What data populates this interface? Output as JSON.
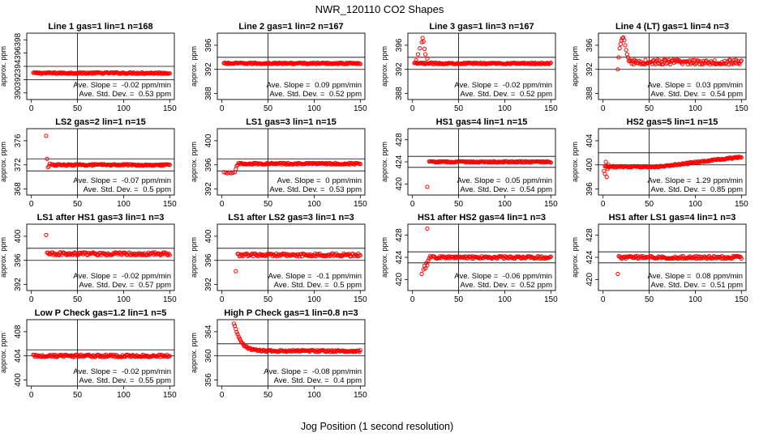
{
  "figure": {
    "title": "NWR_120110  CO2 Shapes",
    "xlabel": "Jog Position (1 second resolution)"
  },
  "chart_data": [
    {
      "type": "scatter",
      "title": "Line 1 gas=1 lin=1 n=168",
      "ylabel": "approx. ppm",
      "xlim": [
        -5,
        155
      ],
      "ylim": [
        389,
        399
      ],
      "yticks": [
        390,
        392,
        394,
        396,
        398
      ],
      "xticks": [
        0,
        50,
        100,
        150
      ],
      "vline": 50,
      "hlines": [
        392,
        394
      ],
      "base": 393,
      "noise": 0.12,
      "trend": 0,
      "x_start": 2,
      "x_end": 150,
      "spikes": [],
      "slope_label": "Ave. Slope = ",
      "slope_value": "-0.02",
      "slope_unit": "ppm/min",
      "std_label": "Ave. Std. Dev. = ",
      "std_value": "0.53",
      "std_unit": "ppm"
    },
    {
      "type": "scatter",
      "title": "Line 2 gas=1 lin=2 n=167",
      "ylabel": "approx. ppm",
      "xlim": [
        -5,
        155
      ],
      "ylim": [
        387,
        398
      ],
      "yticks": [
        388,
        392,
        396
      ],
      "xticks": [
        0,
        50,
        100,
        150
      ],
      "vline": 50,
      "hlines": [
        392,
        394
      ],
      "base": 393,
      "noise": 0.12,
      "trend": 0,
      "x_start": 2,
      "x_end": 150,
      "spikes": [],
      "slope_label": "Ave. Slope = ",
      "slope_value": "0.09",
      "slope_unit": "ppm/min",
      "std_label": "Ave. Std. Dev. = ",
      "std_value": "0.52",
      "std_unit": "ppm"
    },
    {
      "type": "scatter",
      "title": "Line 3 gas=1 lin=3 n=167",
      "ylabel": "approx. ppm",
      "xlim": [
        -5,
        155
      ],
      "ylim": [
        387,
        398
      ],
      "yticks": [
        388,
        392,
        396
      ],
      "xticks": [
        0,
        50,
        100,
        150
      ],
      "vline": 50,
      "hlines": [
        392,
        394
      ],
      "base": 393,
      "noise": 0.12,
      "trend": 0,
      "x_start": 2,
      "x_end": 150,
      "spikes": [
        [
          4,
          393.5
        ],
        [
          6,
          394.5
        ],
        [
          8,
          395.5
        ],
        [
          10,
          396.5
        ],
        [
          11,
          397.2
        ],
        [
          12,
          396.6
        ],
        [
          13,
          395.4
        ],
        [
          14,
          394.5
        ],
        [
          16,
          393.8
        ]
      ],
      "slope_label": "Ave. Slope = ",
      "slope_value": "-0.02",
      "slope_unit": "ppm/min",
      "std_label": "Ave. Std. Dev. = ",
      "std_value": "0.52",
      "std_unit": "ppm"
    },
    {
      "type": "scatter",
      "title": "Line 4 (LT) gas=1 lin=4 n=3",
      "ylabel": "approx. ppm",
      "xlim": [
        -5,
        155
      ],
      "ylim": [
        387,
        398
      ],
      "yticks": [
        388,
        392,
        396
      ],
      "xticks": [
        0,
        50,
        100,
        150
      ],
      "vline": 50,
      "hlines": [
        392,
        394
      ],
      "base": 393.2,
      "noise": 0.4,
      "trend": 0,
      "x_start": 28,
      "x_end": 150,
      "spikes": [
        [
          16,
          392
        ],
        [
          17,
          394
        ],
        [
          18,
          395.5
        ],
        [
          19,
          396.2
        ],
        [
          20,
          396.8
        ],
        [
          21,
          397.2
        ],
        [
          22,
          397.3
        ],
        [
          23,
          396.8
        ],
        [
          24,
          396
        ],
        [
          25,
          395.2
        ],
        [
          26,
          394.5
        ],
        [
          27,
          394
        ]
      ],
      "slope_label": "Ave. Slope = ",
      "slope_value": "0.03",
      "slope_unit": "ppm/min",
      "std_label": "Ave. Std. Dev. = ",
      "std_value": "0.54",
      "std_unit": "ppm"
    },
    {
      "type": "scatter",
      "title": "LS2 gas=2 lin=1 n=15",
      "ylabel": "approx. ppm",
      "xlim": [
        -5,
        155
      ],
      "ylim": [
        367,
        378
      ],
      "yticks": [
        368,
        372,
        376
      ],
      "xticks": [
        0,
        50,
        100,
        150
      ],
      "vline": 50,
      "hlines": [
        371,
        373
      ],
      "base": 372,
      "noise": 0.12,
      "trend": 0,
      "x_start": 22,
      "x_end": 150,
      "spikes": [
        [
          16,
          376.8
        ],
        [
          17,
          373
        ],
        [
          18,
          371.6
        ],
        [
          19,
          371.8
        ],
        [
          20,
          372.2
        ]
      ],
      "slope_label": "Ave. Slope = ",
      "slope_value": "-0.07",
      "slope_unit": "ppm/min",
      "std_label": "Ave. Std. Dev. = ",
      "std_value": "0.5",
      "std_unit": "ppm"
    },
    {
      "type": "scatter",
      "title": "LS1 gas=3 lin=1 n=15",
      "ylabel": "approx. ppm",
      "xlim": [
        -5,
        155
      ],
      "ylim": [
        391,
        402
      ],
      "yticks": [
        392,
        396,
        400
      ],
      "xticks": [
        0,
        50,
        100,
        150
      ],
      "vline": 50,
      "hlines": [
        395,
        397
      ],
      "base": 396.2,
      "noise": 0.13,
      "trend": 0,
      "x_start": 18,
      "x_end": 150,
      "spikes": [
        [
          2,
          394.8
        ],
        [
          4,
          394.7
        ],
        [
          6,
          394.6
        ],
        [
          8,
          394.7
        ],
        [
          10,
          394.6
        ],
        [
          12,
          394.7
        ],
        [
          14,
          394.8
        ],
        [
          15,
          395.3
        ],
        [
          16,
          395.8
        ],
        [
          17,
          396
        ]
      ],
      "slope_label": "Ave. Slope = ",
      "slope_value": "0",
      "slope_unit": "ppm/min",
      "std_label": "Ave. Std. Dev. = ",
      "std_value": "0.53",
      "std_unit": "ppm"
    },
    {
      "type": "scatter",
      "title": "HS1 gas=4 lin=1 n=15",
      "ylabel": "approx. ppm",
      "xlim": [
        -5,
        155
      ],
      "ylim": [
        418,
        430
      ],
      "yticks": [
        420,
        424,
        428
      ],
      "xticks": [
        0,
        50,
        100,
        150
      ],
      "vline": 50,
      "hlines": [
        423,
        425
      ],
      "base": 424,
      "noise": 0.12,
      "trend": 0,
      "x_start": 18,
      "x_end": 150,
      "spikes": [
        [
          16,
          419.5
        ]
      ],
      "slope_label": "Ave. Slope = ",
      "slope_value": "0.05",
      "slope_unit": "ppm/min",
      "std_label": "Ave. Std. Dev. = ",
      "std_value": "0.54",
      "std_unit": "ppm"
    },
    {
      "type": "scatter",
      "title": "HS2 gas=5 lin=1 n=15",
      "ylabel": "approx. ppm",
      "xlim": [
        -5,
        155
      ],
      "ylim": [
        395,
        406
      ],
      "yticks": [
        396,
        400,
        404
      ],
      "xticks": [
        0,
        50,
        100,
        150
      ],
      "vline": 50,
      "hlines": [
        400,
        402
      ],
      "base": 399.7,
      "noise": 0.12,
      "trend": 0.018,
      "trend_start": 60,
      "x_start": 2,
      "x_end": 150,
      "spikes": [
        [
          1,
          399
        ],
        [
          2,
          398.5
        ],
        [
          3,
          400.5
        ],
        [
          4,
          398
        ],
        [
          5,
          399.3
        ],
        [
          6,
          400
        ]
      ],
      "slope_label": "Ave. Slope = ",
      "slope_value": "1.29",
      "slope_unit": "ppm/min",
      "std_label": "Ave. Std. Dev. = ",
      "std_value": "0.85",
      "std_unit": "ppm"
    },
    {
      "type": "scatter",
      "title": "LS1 after HS1 gas=3 lin=1 n=3",
      "ylabel": "approx. ppm",
      "xlim": [
        -5,
        155
      ],
      "ylim": [
        391,
        402
      ],
      "yticks": [
        392,
        396,
        400
      ],
      "xticks": [
        0,
        50,
        100,
        150
      ],
      "vline": 50,
      "hlines": [
        396,
        398
      ],
      "base": 397.1,
      "noise": 0.25,
      "trend": 0,
      "x_start": 17,
      "x_end": 150,
      "spikes": [
        [
          16,
          400.2
        ]
      ],
      "slope_label": "Ave. Slope = ",
      "slope_value": "-0.02",
      "slope_unit": "ppm/min",
      "std_label": "Ave. Std. Dev. = ",
      "std_value": "0.57",
      "std_unit": "ppm"
    },
    {
      "type": "scatter",
      "title": "LS1 after LS2 gas=3 lin=1 n=3",
      "ylabel": "approx. ppm",
      "xlim": [
        -5,
        155
      ],
      "ylim": [
        391,
        402
      ],
      "yticks": [
        392,
        396,
        400
      ],
      "xticks": [
        0,
        50,
        100,
        150
      ],
      "vline": 50,
      "hlines": [
        396,
        398
      ],
      "base": 396.9,
      "noise": 0.25,
      "trend": 0,
      "x_start": 17,
      "x_end": 150,
      "spikes": [
        [
          15,
          394.2
        ]
      ],
      "slope_label": "Ave. Slope = ",
      "slope_value": "-0.1",
      "slope_unit": "ppm/min",
      "std_label": "Ave. Std. Dev. = ",
      "std_value": "0.5",
      "std_unit": "ppm"
    },
    {
      "type": "scatter",
      "title": "HS1 after HS2 gas=4 lin=1 n=3",
      "ylabel": "approx. ppm",
      "xlim": [
        -5,
        155
      ],
      "ylim": [
        418,
        430
      ],
      "yticks": [
        420,
        424,
        428
      ],
      "xticks": [
        0,
        50,
        100,
        150
      ],
      "vline": 50,
      "hlines": [
        423,
        425
      ],
      "base": 424,
      "noise": 0.22,
      "trend": 0,
      "x_start": 22,
      "x_end": 150,
      "spikes": [
        [
          10,
          421
        ],
        [
          12,
          421.8
        ],
        [
          13,
          422.5
        ],
        [
          14,
          422
        ],
        [
          15,
          423
        ],
        [
          16,
          422.6
        ],
        [
          17,
          423.4
        ],
        [
          18,
          423.8
        ],
        [
          19,
          424.2
        ],
        [
          20,
          424
        ],
        [
          16,
          429.2
        ]
      ],
      "slope_label": "Ave. Slope = ",
      "slope_value": "-0.06",
      "slope_unit": "ppm/min",
      "std_label": "Ave. Std. Dev. = ",
      "std_value": "0.52",
      "std_unit": "ppm"
    },
    {
      "type": "scatter",
      "title": "HS1 after LS1 gas=4 lin=1 n=3",
      "ylabel": "approx. ppm",
      "xlim": [
        -5,
        155
      ],
      "ylim": [
        418,
        430
      ],
      "yticks": [
        420,
        424,
        428
      ],
      "xticks": [
        0,
        50,
        100,
        150
      ],
      "vline": 50,
      "hlines": [
        423,
        425
      ],
      "base": 424,
      "noise": 0.25,
      "trend": 0,
      "x_start": 17,
      "x_end": 150,
      "spikes": [
        [
          16,
          421
        ]
      ],
      "slope_label": "Ave. Slope = ",
      "slope_value": "0.08",
      "slope_unit": "ppm/min",
      "std_label": "Ave. Std. Dev. = ",
      "std_value": "0.51",
      "std_unit": "ppm"
    },
    {
      "type": "scatter",
      "title": "Low P Check gas=1.2 lin=1 n=5",
      "ylabel": "approx. ppm",
      "xlim": [
        -5,
        155
      ],
      "ylim": [
        399,
        410
      ],
      "yticks": [
        400,
        404,
        408
      ],
      "xticks": [
        0,
        50,
        100,
        150
      ],
      "vline": 50,
      "hlines": [
        404,
        405
      ],
      "base": 404,
      "noise": 0.2,
      "trend": 0,
      "x_start": 2,
      "x_end": 150,
      "spikes": [],
      "slope_label": "Ave. Slope = ",
      "slope_value": "-0.02",
      "slope_unit": "ppm/min",
      "std_label": "Ave. Std. Dev. = ",
      "std_value": "0.55",
      "std_unit": "ppm"
    },
    {
      "type": "scatter",
      "title": "High P Check gas=1 lin=0.8 n=3",
      "ylabel": "approx. ppm",
      "xlim": [
        -5,
        155
      ],
      "ylim": [
        355,
        366
      ],
      "yticks": [
        356,
        360,
        364
      ],
      "xticks": [
        0,
        50,
        100,
        150
      ],
      "vline": 50,
      "hlines": [
        360,
        362
      ],
      "base": 360.8,
      "noise": 0.15,
      "trend": 0,
      "decay": {
        "x0": 13,
        "amp": 4.7,
        "tau": 7
      },
      "x_start": 13,
      "x_end": 150,
      "spikes": [],
      "slope_label": "Ave. Slope = ",
      "slope_value": "-0.08",
      "slope_unit": "ppm/min",
      "std_label": "Ave. Std. Dev. = ",
      "std_value": "0.4",
      "std_unit": "ppm"
    }
  ]
}
